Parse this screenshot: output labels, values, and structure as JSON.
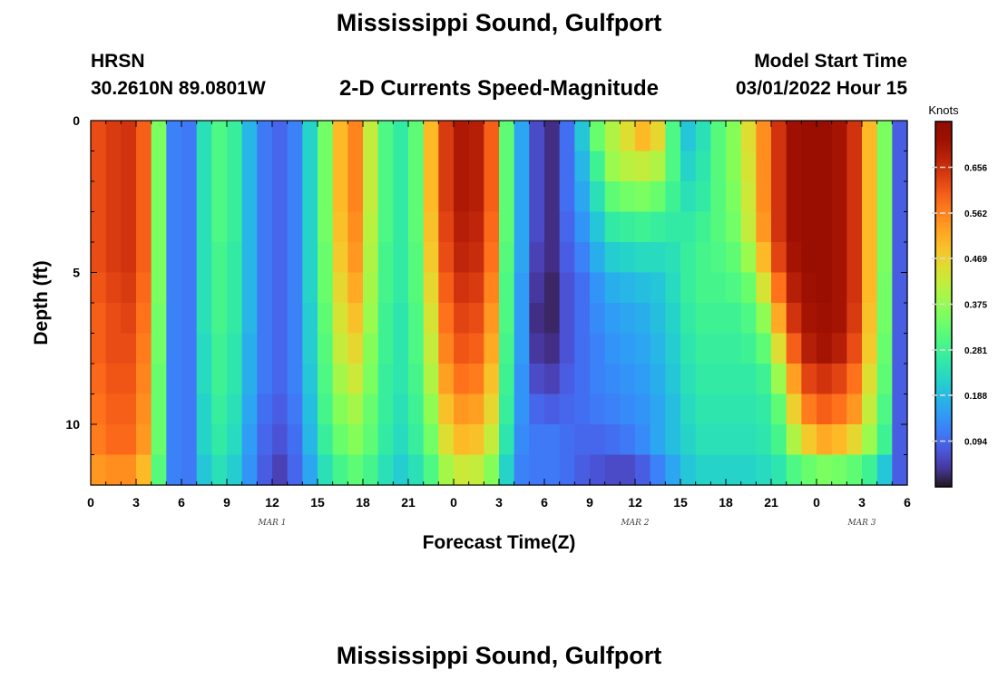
{
  "header": {
    "title": "Mississippi Sound, Gulfport",
    "station": "HRSN",
    "coordinates": "30.2610N  89.0801W",
    "subtitle": "2-D Currents Speed-Magnitude",
    "model_start_label": "Model Start Time",
    "model_start_value": "03/01/2022 Hour 15",
    "bottom_title": "Mississippi Sound, Gulfport"
  },
  "chart_data": {
    "type": "heatmap",
    "xlabel": "Forecast Time(Z)",
    "ylabel": "Depth (ft)",
    "x_ticks": [
      "0",
      "3",
      "6",
      "9",
      "12",
      "15",
      "18",
      "21",
      "0",
      "3",
      "6",
      "9",
      "12",
      "15",
      "18",
      "21",
      "0",
      "3",
      "6"
    ],
    "x_range_hours": [
      0,
      54
    ],
    "date_labels": [
      {
        "text": "MAR 1",
        "hour": 12
      },
      {
        "text": "MAR 2",
        "hour": 36
      },
      {
        "text": "MAR 3",
        "hour": 51
      }
    ],
    "y_ticks": [
      0,
      5,
      10
    ],
    "y_range": [
      0,
      12
    ],
    "y_inverted": true,
    "colorbar": {
      "title": "Knots",
      "min": 0.0,
      "max": 0.75,
      "tick_labels": [
        "0.094",
        "0.188",
        "0.281",
        "0.375",
        "0.469",
        "0.562",
        "0.656"
      ],
      "colormap": "turbo"
    },
    "depths_ft": [
      0.5,
      1.5,
      2.5,
      3.5,
      4.5,
      5.5,
      6.5,
      7.5,
      8.5,
      9.5,
      10.5,
      11.5
    ],
    "times_hours": [
      0,
      1,
      2,
      3,
      4,
      5,
      6,
      7,
      8,
      9,
      10,
      11,
      12,
      13,
      14,
      15,
      16,
      17,
      18,
      19,
      20,
      21,
      22,
      23,
      24,
      25,
      26,
      27,
      28,
      29,
      30,
      31,
      32,
      33,
      34,
      35,
      36,
      37,
      38,
      39,
      40,
      41,
      42,
      43,
      44,
      45,
      46,
      47,
      48,
      49,
      50,
      51,
      52,
      53
    ],
    "speed_knots": [
      [
        0.62,
        0.64,
        0.65,
        0.6,
        0.35,
        0.12,
        0.11,
        0.24,
        0.3,
        0.27,
        0.18,
        0.11,
        0.09,
        0.12,
        0.22,
        0.34,
        0.5,
        0.56,
        0.42,
        0.3,
        0.26,
        0.32,
        0.5,
        0.64,
        0.69,
        0.68,
        0.6,
        0.32,
        0.16,
        0.06,
        0.03,
        0.1,
        0.2,
        0.33,
        0.4,
        0.45,
        0.5,
        0.46,
        0.3,
        0.2,
        0.24,
        0.31,
        0.36,
        0.45,
        0.55,
        0.65,
        0.71,
        0.72,
        0.72,
        0.7,
        0.65,
        0.5,
        0.35,
        0.08
      ],
      [
        0.62,
        0.64,
        0.65,
        0.6,
        0.35,
        0.12,
        0.11,
        0.24,
        0.3,
        0.27,
        0.18,
        0.11,
        0.09,
        0.12,
        0.22,
        0.34,
        0.5,
        0.56,
        0.42,
        0.3,
        0.26,
        0.32,
        0.5,
        0.64,
        0.69,
        0.68,
        0.6,
        0.32,
        0.16,
        0.06,
        0.03,
        0.1,
        0.18,
        0.28,
        0.38,
        0.41,
        0.42,
        0.4,
        0.3,
        0.22,
        0.25,
        0.31,
        0.36,
        0.44,
        0.55,
        0.65,
        0.71,
        0.72,
        0.72,
        0.7,
        0.65,
        0.5,
        0.35,
        0.08
      ],
      [
        0.62,
        0.64,
        0.65,
        0.6,
        0.35,
        0.12,
        0.11,
        0.24,
        0.3,
        0.27,
        0.18,
        0.11,
        0.09,
        0.12,
        0.22,
        0.34,
        0.5,
        0.56,
        0.42,
        0.3,
        0.26,
        0.32,
        0.5,
        0.64,
        0.69,
        0.68,
        0.6,
        0.32,
        0.16,
        0.06,
        0.03,
        0.1,
        0.16,
        0.24,
        0.32,
        0.34,
        0.35,
        0.33,
        0.28,
        0.24,
        0.26,
        0.31,
        0.35,
        0.43,
        0.55,
        0.65,
        0.71,
        0.72,
        0.72,
        0.7,
        0.65,
        0.5,
        0.35,
        0.08
      ],
      [
        0.62,
        0.64,
        0.65,
        0.6,
        0.35,
        0.12,
        0.11,
        0.24,
        0.3,
        0.27,
        0.18,
        0.11,
        0.09,
        0.12,
        0.22,
        0.34,
        0.49,
        0.55,
        0.41,
        0.3,
        0.26,
        0.32,
        0.49,
        0.63,
        0.68,
        0.67,
        0.59,
        0.32,
        0.16,
        0.06,
        0.03,
        0.09,
        0.14,
        0.2,
        0.26,
        0.27,
        0.28,
        0.27,
        0.26,
        0.26,
        0.28,
        0.31,
        0.34,
        0.42,
        0.54,
        0.65,
        0.71,
        0.72,
        0.72,
        0.7,
        0.65,
        0.5,
        0.35,
        0.08
      ],
      [
        0.62,
        0.64,
        0.65,
        0.6,
        0.35,
        0.12,
        0.11,
        0.24,
        0.29,
        0.26,
        0.18,
        0.11,
        0.09,
        0.12,
        0.22,
        0.33,
        0.48,
        0.54,
        0.4,
        0.29,
        0.26,
        0.31,
        0.48,
        0.62,
        0.67,
        0.66,
        0.58,
        0.31,
        0.16,
        0.05,
        0.03,
        0.08,
        0.12,
        0.17,
        0.21,
        0.22,
        0.23,
        0.23,
        0.24,
        0.27,
        0.29,
        0.3,
        0.32,
        0.38,
        0.5,
        0.63,
        0.7,
        0.72,
        0.72,
        0.7,
        0.65,
        0.5,
        0.35,
        0.08
      ],
      [
        0.61,
        0.63,
        0.64,
        0.59,
        0.35,
        0.12,
        0.11,
        0.24,
        0.29,
        0.26,
        0.18,
        0.11,
        0.09,
        0.12,
        0.22,
        0.33,
        0.46,
        0.52,
        0.39,
        0.29,
        0.26,
        0.31,
        0.46,
        0.6,
        0.65,
        0.64,
        0.56,
        0.3,
        0.15,
        0.04,
        0.02,
        0.07,
        0.1,
        0.14,
        0.17,
        0.18,
        0.19,
        0.2,
        0.23,
        0.27,
        0.29,
        0.29,
        0.3,
        0.33,
        0.44,
        0.58,
        0.68,
        0.71,
        0.72,
        0.7,
        0.65,
        0.5,
        0.34,
        0.08
      ],
      [
        0.6,
        0.62,
        0.63,
        0.58,
        0.34,
        0.12,
        0.11,
        0.24,
        0.29,
        0.26,
        0.18,
        0.11,
        0.09,
        0.12,
        0.21,
        0.32,
        0.44,
        0.49,
        0.38,
        0.28,
        0.25,
        0.3,
        0.44,
        0.58,
        0.63,
        0.62,
        0.54,
        0.3,
        0.15,
        0.03,
        0.02,
        0.07,
        0.1,
        0.13,
        0.15,
        0.16,
        0.17,
        0.19,
        0.22,
        0.26,
        0.28,
        0.28,
        0.28,
        0.3,
        0.37,
        0.52,
        0.65,
        0.7,
        0.71,
        0.7,
        0.64,
        0.49,
        0.34,
        0.08
      ],
      [
        0.6,
        0.62,
        0.62,
        0.57,
        0.34,
        0.12,
        0.11,
        0.23,
        0.28,
        0.25,
        0.17,
        0.11,
        0.09,
        0.12,
        0.21,
        0.31,
        0.42,
        0.46,
        0.36,
        0.28,
        0.25,
        0.3,
        0.42,
        0.56,
        0.61,
        0.6,
        0.52,
        0.29,
        0.15,
        0.04,
        0.03,
        0.07,
        0.1,
        0.12,
        0.14,
        0.15,
        0.16,
        0.18,
        0.21,
        0.25,
        0.27,
        0.27,
        0.27,
        0.28,
        0.32,
        0.45,
        0.6,
        0.68,
        0.7,
        0.68,
        0.62,
        0.48,
        0.33,
        0.08
      ],
      [
        0.59,
        0.61,
        0.61,
        0.56,
        0.33,
        0.12,
        0.11,
        0.23,
        0.28,
        0.25,
        0.17,
        0.11,
        0.09,
        0.12,
        0.2,
        0.3,
        0.39,
        0.43,
        0.35,
        0.27,
        0.25,
        0.29,
        0.4,
        0.53,
        0.58,
        0.57,
        0.49,
        0.28,
        0.14,
        0.06,
        0.05,
        0.08,
        0.1,
        0.12,
        0.13,
        0.14,
        0.15,
        0.17,
        0.2,
        0.24,
        0.26,
        0.26,
        0.26,
        0.26,
        0.28,
        0.38,
        0.53,
        0.63,
        0.65,
        0.63,
        0.58,
        0.45,
        0.32,
        0.08
      ],
      [
        0.58,
        0.6,
        0.6,
        0.55,
        0.33,
        0.12,
        0.11,
        0.22,
        0.27,
        0.24,
        0.16,
        0.1,
        0.08,
        0.11,
        0.19,
        0.29,
        0.36,
        0.39,
        0.33,
        0.27,
        0.24,
        0.28,
        0.37,
        0.49,
        0.54,
        0.53,
        0.46,
        0.27,
        0.14,
        0.09,
        0.08,
        0.09,
        0.1,
        0.11,
        0.12,
        0.13,
        0.14,
        0.16,
        0.19,
        0.23,
        0.25,
        0.25,
        0.25,
        0.25,
        0.26,
        0.32,
        0.47,
        0.57,
        0.6,
        0.58,
        0.54,
        0.42,
        0.3,
        0.08
      ],
      [
        0.57,
        0.59,
        0.59,
        0.54,
        0.33,
        0.12,
        0.11,
        0.22,
        0.26,
        0.23,
        0.15,
        0.09,
        0.07,
        0.1,
        0.18,
        0.27,
        0.33,
        0.36,
        0.32,
        0.26,
        0.23,
        0.27,
        0.34,
        0.45,
        0.5,
        0.49,
        0.42,
        0.25,
        0.13,
        0.11,
        0.11,
        0.1,
        0.09,
        0.09,
        0.1,
        0.11,
        0.13,
        0.16,
        0.19,
        0.22,
        0.24,
        0.24,
        0.24,
        0.24,
        0.25,
        0.29,
        0.4,
        0.48,
        0.52,
        0.5,
        0.46,
        0.38,
        0.28,
        0.08
      ],
      [
        0.54,
        0.55,
        0.55,
        0.5,
        0.31,
        0.12,
        0.11,
        0.2,
        0.24,
        0.21,
        0.14,
        0.08,
        0.05,
        0.09,
        0.16,
        0.24,
        0.29,
        0.32,
        0.29,
        0.24,
        0.21,
        0.24,
        0.3,
        0.39,
        0.43,
        0.42,
        0.36,
        0.22,
        0.12,
        0.11,
        0.11,
        0.1,
        0.08,
        0.07,
        0.06,
        0.06,
        0.08,
        0.12,
        0.16,
        0.2,
        0.22,
        0.22,
        0.22,
        0.22,
        0.23,
        0.25,
        0.3,
        0.33,
        0.35,
        0.34,
        0.32,
        0.28,
        0.2,
        0.08
      ]
    ]
  }
}
